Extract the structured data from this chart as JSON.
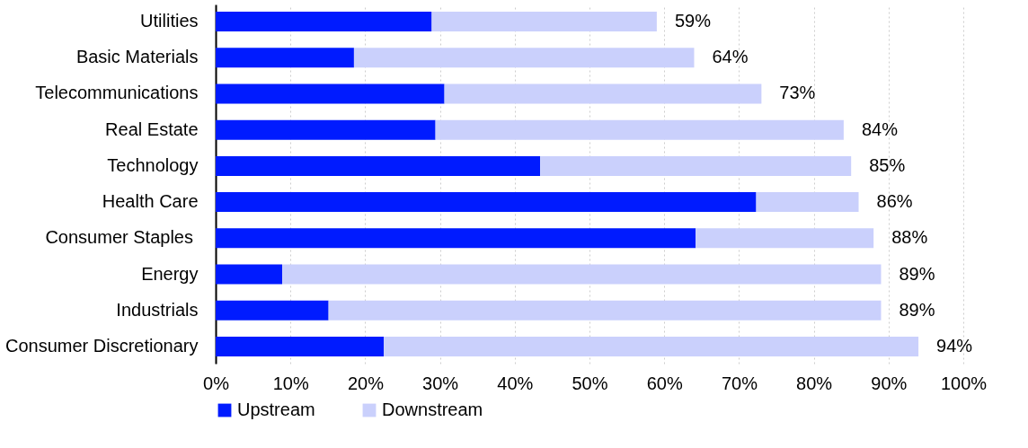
{
  "chart_data": {
    "type": "bar",
    "orientation": "horizontal",
    "stacked": true,
    "categories": [
      "Utilities",
      "Basic Materials",
      "Telecommunications",
      "Real Estate",
      "Technology",
      "Health Care",
      "Consumer Staples ",
      "Energy",
      "Industrials",
      "Consumer Discretionary"
    ],
    "series": [
      {
        "name": "Upstream",
        "color": "#001bff",
        "values": [
          28.9,
          18.5,
          30.6,
          29.4,
          43.4,
          72.3,
          64.2,
          8.9,
          15.1,
          22.5
        ]
      },
      {
        "name": "Downstream",
        "color": "#cad0fc",
        "values": [
          30.1,
          45.5,
          42.4,
          54.6,
          41.6,
          13.7,
          23.8,
          80.1,
          73.9,
          71.5
        ]
      }
    ],
    "totals": [
      "59%",
      "64%",
      "73%",
      "84%",
      "85%",
      "86%",
      "88%",
      "89%",
      "89%",
      "94%"
    ],
    "xlim": [
      0,
      100
    ],
    "xticks": [
      {
        "value": 0,
        "label": "0%"
      },
      {
        "value": 10,
        "label": "10%"
      },
      {
        "value": 20,
        "label": "20%"
      },
      {
        "value": 30,
        "label": "30%"
      },
      {
        "value": 40,
        "label": "40%"
      },
      {
        "value": 50,
        "label": "50%"
      },
      {
        "value": 60,
        "label": "60%"
      },
      {
        "value": 70,
        "label": "70%"
      },
      {
        "value": 80,
        "label": "80%"
      },
      {
        "value": 90,
        "label": "90%"
      },
      {
        "value": 100,
        "label": "100%"
      }
    ],
    "grid": "x",
    "legend": "bottom"
  }
}
